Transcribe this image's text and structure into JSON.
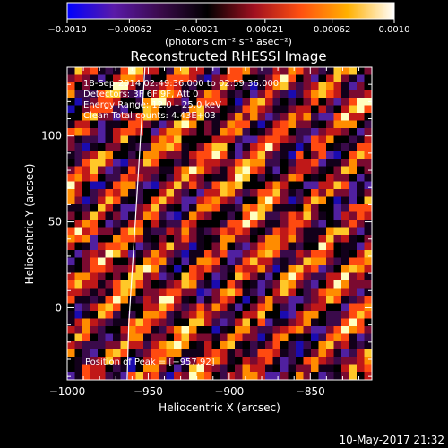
{
  "chart_data": {
    "type": "heatmap",
    "title": "Reconstructed RHESSI Image",
    "xlabel": "Heliocentric X (arcsec)",
    "ylabel": "Heliocentric Y (arcsec)",
    "xlim": [
      -1000,
      -812
    ],
    "ylim": [
      -42,
      140
    ],
    "x_ticks": [
      -1000,
      -950,
      -900,
      -850
    ],
    "x_tick_labels": [
      "−1000",
      "−950",
      "−900",
      "−850"
    ],
    "y_ticks": [
      0,
      50,
      100
    ],
    "y_tick_labels": [
      "0",
      "50",
      "100"
    ],
    "colorbar": {
      "range": [
        -0.001,
        0.001
      ],
      "ticks": [
        -0.001,
        -0.00062,
        -0.00021,
        0.00021,
        0.00062,
        0.001
      ],
      "tick_labels": [
        "−0.0010",
        "−0.00062",
        "−0.00021",
        "0.00021",
        "0.00062",
        "0.0010"
      ],
      "units_label": "(photons cm⁻² s⁻¹ asec⁻²)"
    },
    "annotations": [
      "18-Sep-2014 02:49:36.000 to 02:59:36.000",
      "Detectors: 3F 6F 9F, Att 0",
      "Energy Range: 12.0 – 25.0 keV",
      "Clean     Total counts: 4.43E+03"
    ],
    "peak_label": "Position of Peak = [−957,92]",
    "peak": [
      -957,
      92
    ],
    "limb_points": [
      [
        -952,
        140
      ],
      [
        -954,
        110
      ],
      [
        -956,
        80
      ],
      [
        -958,
        50
      ],
      [
        -960,
        20
      ],
      [
        -962,
        -10
      ],
      [
        -963,
        -42
      ]
    ],
    "grid": false,
    "colors": {
      "background": "#000000",
      "text": "#ffffff",
      "limb": "#ffffff",
      "colorbar_stops": [
        "#0000ff",
        "#5a1aa8",
        "#3a0a4a",
        "#000000",
        "#a01020",
        "#ff5010",
        "#ffb000",
        "#ffffff"
      ]
    }
  },
  "footer_timestamp": "10-May-2017 21:32"
}
